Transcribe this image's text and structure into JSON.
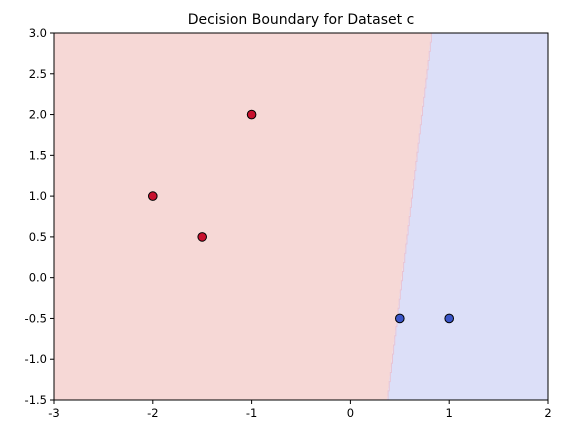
{
  "chart_data": {
    "type": "scatter",
    "title": "Decision Boundary for Dataset c",
    "xlabel": "",
    "ylabel": "",
    "xlim": [
      -3,
      2
    ],
    "ylim": [
      -1.5,
      3.0
    ],
    "x_ticks": [
      "-3",
      "-2",
      "-1",
      "0",
      "1",
      "2"
    ],
    "y_ticks": [
      "-1.5",
      "-1.0",
      "-0.5",
      "0.0",
      "0.5",
      "1.0",
      "1.5",
      "2.0",
      "2.5",
      "3.0"
    ],
    "grid": false,
    "legend": "none",
    "regions": [
      {
        "class": "red",
        "color": "#f6d8d6"
      },
      {
        "class": "blue",
        "color": "#dcdff8"
      }
    ],
    "boundary": [
      {
        "x": 0.37,
        "y": -1.5
      },
      {
        "x": 0.82,
        "y": 3.0
      }
    ],
    "series": [
      {
        "class": "red",
        "color": "#c8102e",
        "points": [
          {
            "x": -2.0,
            "y": 1.0
          },
          {
            "x": -1.5,
            "y": 0.5
          },
          {
            "x": -1.0,
            "y": 2.0
          }
        ]
      },
      {
        "class": "blue",
        "color": "#3a55c8",
        "points": [
          {
            "x": 0.5,
            "y": -0.5
          },
          {
            "x": 1.0,
            "y": -0.5
          }
        ]
      }
    ]
  }
}
